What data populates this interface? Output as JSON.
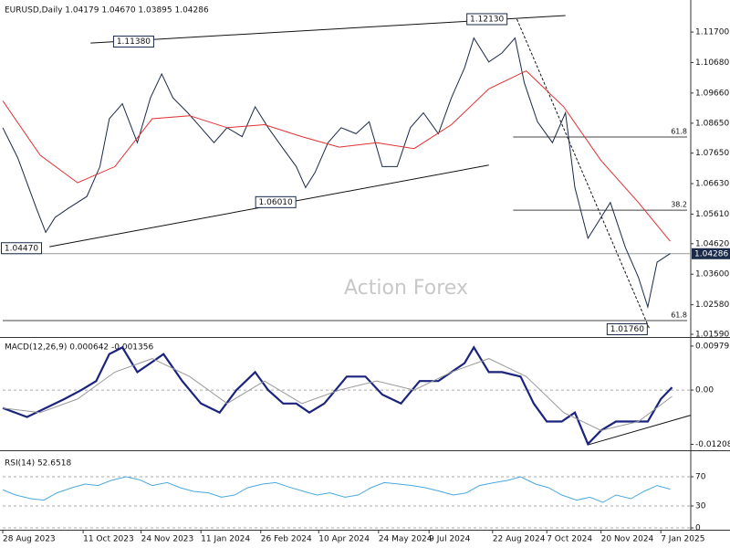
{
  "chart_data": [
    {
      "type": "line",
      "title": "EURUSD,Daily 1.04179 1.04670 1.03895 1.04286",
      "watermark": "Action Forex",
      "xlim": [
        0,
        368
      ],
      "ylim": [
        1.0153,
        1.1271
      ],
      "yticks": [
        {
          "value": 1.117,
          "label": "1.11700"
        },
        {
          "value": 1.1068,
          "label": "1.10680"
        },
        {
          "value": 1.0966,
          "label": "1.09660"
        },
        {
          "value": 1.0865,
          "label": "1.08650"
        },
        {
          "value": 1.0765,
          "label": "1.07650"
        },
        {
          "value": 1.0663,
          "label": "1.06630"
        },
        {
          "value": 1.0561,
          "label": "1.05610"
        },
        {
          "value": 1.0462,
          "label": "1.04620"
        },
        {
          "value": 1.036,
          "label": "1.03600"
        },
        {
          "value": 1.0258,
          "label": "1.02580"
        },
        {
          "value": 1.0159,
          "label": "1.01590"
        }
      ],
      "series": [
        {
          "name": "EURUSD",
          "color": "#1a2a4a",
          "x": [
            0,
            8,
            18,
            23,
            28,
            35,
            45,
            52,
            57,
            64,
            72,
            79,
            85,
            91,
            99,
            106,
            113,
            120,
            128,
            135,
            142,
            150,
            157,
            162,
            167,
            174,
            181,
            189,
            196,
            203,
            211,
            218,
            225,
            233,
            240,
            247,
            252,
            260,
            267,
            274,
            279,
            286,
            294,
            301,
            306,
            313,
            320,
            325,
            333,
            340,
            345,
            350,
            357
          ],
          "values": [
            1.085,
            1.075,
            1.058,
            1.05,
            1.055,
            1.058,
            1.062,
            1.072,
            1.088,
            1.093,
            1.08,
            1.095,
            1.103,
            1.095,
            1.09,
            1.085,
            1.08,
            1.085,
            1.082,
            1.092,
            1.085,
            1.078,
            1.072,
            1.065,
            1.07,
            1.08,
            1.085,
            1.083,
            1.087,
            1.072,
            1.072,
            1.085,
            1.09,
            1.083,
            1.095,
            1.105,
            1.115,
            1.107,
            1.11,
            1.115,
            1.1,
            1.087,
            1.08,
            1.09,
            1.065,
            1.048,
            1.055,
            1.06,
            1.045,
            1.035,
            1.025,
            1.04,
            1.0429
          ]
        },
        {
          "name": "MA",
          "color": "#e03030",
          "x": [
            0,
            20,
            40,
            60,
            80,
            100,
            120,
            140,
            160,
            180,
            200,
            220,
            240,
            260,
            280,
            300,
            320,
            340,
            357
          ],
          "values": [
            1.094,
            1.0758,
            1.0666,
            1.072,
            1.088,
            1.089,
            1.085,
            1.086,
            1.082,
            1.0785,
            1.08,
            1.078,
            1.086,
            1.098,
            1.104,
            1.092,
            1.074,
            1.06,
            1.047
          ]
        }
      ],
      "trendlines": [
        {
          "x": [
            47,
            301
          ],
          "y": [
            1.1133,
            1.1225
          ],
          "dash": false
        },
        {
          "x": [
            25,
            260
          ],
          "y": [
            1.0452,
            1.0725
          ],
          "dash": false
        },
        {
          "x": [
            275,
            346
          ],
          "y": [
            1.1213,
            1.0176
          ],
          "dash": true
        }
      ],
      "levels": [
        {
          "label": "1.11380",
          "value": 1.1138,
          "x": 70
        },
        {
          "label": "1.12130",
          "value": 1.1213,
          "x": 259
        },
        {
          "label": "1.06010",
          "value": 1.0601,
          "x": 146
        },
        {
          "label": "1.04470",
          "value": 1.0447,
          "x": 10
        },
        {
          "label": "1.01760",
          "value": 1.0176,
          "x": 334
        }
      ],
      "fib_levels": [
        {
          "level": 61.8,
          "value": 1.0819,
          "from": 273
        },
        {
          "level": 38.2,
          "value": 1.0574,
          "from": 273
        },
        {
          "level": 61.8,
          "value": 1.0205,
          "from": 0
        }
      ],
      "last_price": 1.04286
    },
    {
      "type": "line",
      "title": "MACD(12,26,9) 0.000642 -0.001356",
      "xlim": [
        0,
        368
      ],
      "ylim": [
        -0.0132,
        0.0114
      ],
      "yticks": [
        0.009795,
        {
          "value": 0,
          "label": "0.00"
        },
        -0.012081
      ],
      "zero_line": true,
      "series": [
        {
          "name": "MACD",
          "color": "#1a237e",
          "x": [
            0,
            13,
            23,
            33,
            42,
            50,
            57,
            64,
            72,
            79,
            86,
            96,
            106,
            116,
            125,
            135,
            142,
            150,
            157,
            164,
            172,
            184,
            194,
            203,
            213,
            223,
            233,
            240,
            247,
            252,
            260,
            267,
            277,
            284,
            291,
            299,
            306,
            313,
            320,
            328,
            335,
            345,
            352,
            358
          ],
          "values": [
            -0.004,
            -0.006,
            -0.004,
            -0.002,
            0,
            0.002,
            0.008,
            0.0095,
            0.004,
            0.006,
            0.008,
            0.002,
            -0.003,
            -0.005,
            0,
            0.004,
            0,
            -0.003,
            -0.003,
            -0.005,
            -0.003,
            0.003,
            0.003,
            -0.001,
            -0.003,
            0.002,
            0.002,
            0.004,
            0.006,
            0.0095,
            0.004,
            0.004,
            0.003,
            -0.003,
            -0.007,
            -0.007,
            -0.005,
            -0.012,
            -0.009,
            -0.007,
            -0.007,
            -0.007,
            -0.002,
            0.0006
          ]
        },
        {
          "name": "Signal",
          "color": "#999999",
          "x": [
            0,
            20,
            40,
            60,
            80,
            100,
            120,
            140,
            160,
            180,
            200,
            220,
            240,
            260,
            280,
            300,
            320,
            340,
            358
          ],
          "values": [
            -0.004,
            -0.005,
            -0.002,
            0.004,
            0.007,
            0.003,
            -0.003,
            0.002,
            -0.003,
            0,
            0.002,
            0,
            0.004,
            0.007,
            0.003,
            -0.005,
            -0.009,
            -0.007,
            -0.0014
          ]
        }
      ],
      "trendlines": [
        {
          "x": [
            313,
            368
          ],
          "y": [
            -0.0122,
            -0.0056
          ],
          "dash": false
        }
      ]
    },
    {
      "type": "line",
      "title": "RSI(14) 52.6518",
      "xlim": [
        0,
        368
      ],
      "ylim": [
        0,
        100
      ],
      "yticks": [
        70,
        30,
        0
      ],
      "grid": true,
      "series": [
        {
          "name": "RSI",
          "color": "#4aa8e0",
          "x": [
            0,
            7,
            15,
            22,
            29,
            37,
            44,
            51,
            58,
            66,
            73,
            80,
            88,
            95,
            102,
            110,
            117,
            124,
            131,
            139,
            146,
            153,
            161,
            168,
            175,
            183,
            190,
            197,
            204,
            212,
            219,
            226,
            234,
            241,
            248,
            255,
            263,
            270,
            277,
            285,
            292,
            299,
            307,
            314,
            321,
            328,
            336,
            343,
            350,
            357
          ],
          "values": [
            52,
            45,
            40,
            38,
            48,
            55,
            60,
            58,
            65,
            70,
            66,
            58,
            62,
            55,
            50,
            48,
            42,
            45,
            55,
            60,
            62,
            56,
            50,
            45,
            48,
            42,
            45,
            55,
            62,
            60,
            58,
            55,
            50,
            45,
            48,
            58,
            62,
            65,
            70,
            60,
            55,
            45,
            38,
            42,
            35,
            45,
            40,
            50,
            58,
            53
          ]
        }
      ],
      "xticks": [
        {
          "value": 0,
          "label": "28 Aug 2023"
        },
        {
          "value": 43,
          "label": "11 Oct 2023"
        },
        {
          "value": 74,
          "label": "24 Nov 2023"
        },
        {
          "value": 106,
          "label": "11 Jan 2024"
        },
        {
          "value": 138,
          "label": "26 Feb 2024"
        },
        {
          "value": 169,
          "label": "10 Apr 2024"
        },
        {
          "value": 201,
          "label": "24 May 2024"
        },
        {
          "value": 228,
          "label": "9 Jul 2024"
        },
        {
          "value": 262,
          "label": "22 Aug 2024"
        },
        {
          "value": 291,
          "label": "7 Oct 2024"
        },
        {
          "value": 320,
          "label": "20 Nov 2024"
        },
        {
          "value": 352,
          "label": "7 Jan 2025"
        }
      ]
    }
  ]
}
